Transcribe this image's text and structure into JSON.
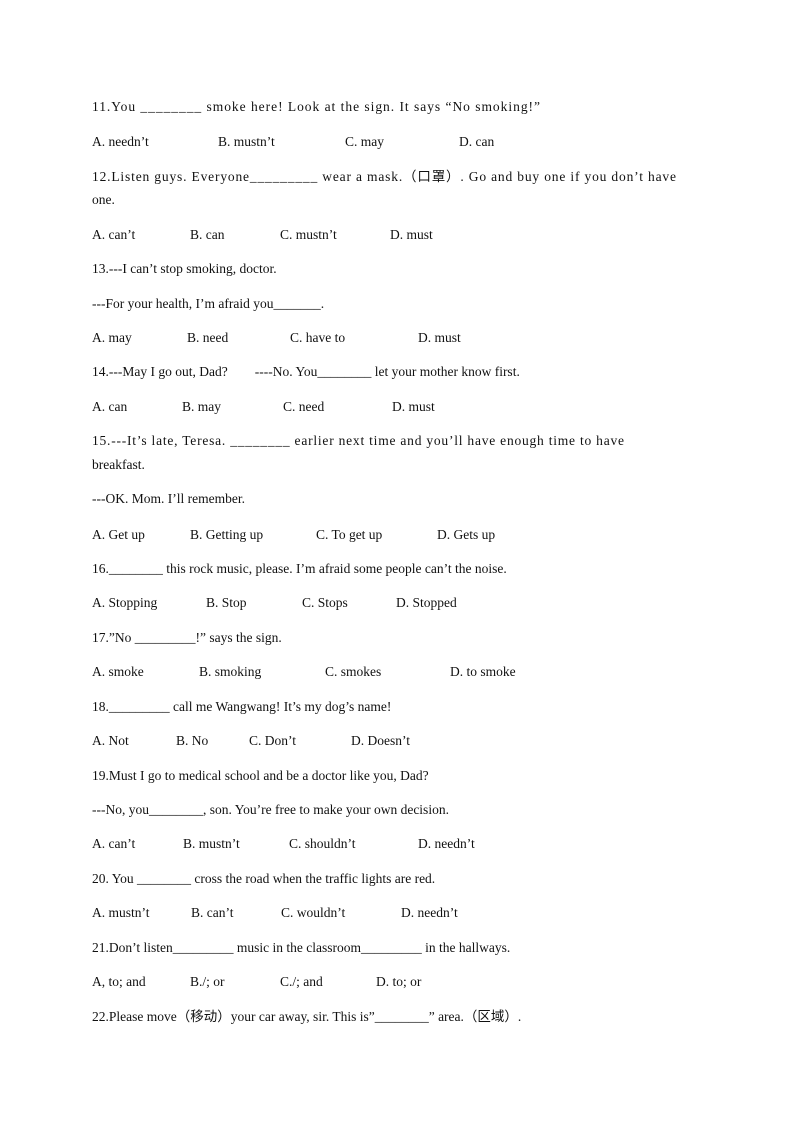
{
  "questions": [
    {
      "stem": [
        "11.You ________ smoke here! Look at the sign. It says “No smoking!”"
      ],
      "options": [
        {
          "text": "A. needn’t",
          "color": "#111111"
        },
        {
          "text": "B. mustn’t",
          "color": "#e8201f"
        },
        {
          "text": "C. may",
          "color": "#111111"
        },
        {
          "text": "D. can",
          "color": "#111111"
        }
      ]
    },
    {
      "stem": [
        "12.Listen guys. Everyone_________ wear a mask.（口罩）. Go and buy one if you don’t have",
        "one."
      ],
      "options": [
        {
          "text": "A. can’t",
          "color": "#111111"
        },
        {
          "text": "B. can",
          "color": "#111111"
        },
        {
          "text": "C. mustn’t",
          "color": "#111111"
        },
        {
          "text": "D. must",
          "color": "#e8201f"
        }
      ]
    },
    {
      "stem": [
        "13.---I can’t stop smoking, doctor.",
        "---For your health, I’m afraid you_______."
      ],
      "options": [
        {
          "text": "A. may",
          "color": "#111111"
        },
        {
          "text": "B. need",
          "color": "#111111"
        },
        {
          "text": "C. have to",
          "color": "#e8201f"
        },
        {
          "text": "D. must",
          "color": "#111111"
        }
      ]
    },
    {
      "stem": [
        "14.---May I go out, Dad?        ----No. You________ let your mother know first."
      ],
      "options": [
        {
          "text": "A. can",
          "color": "#111111"
        },
        {
          "text": "B. may",
          "color": "#111111"
        },
        {
          "text": "C. need",
          "color": "#111111"
        },
        {
          "text": "D. must",
          "color": "#e8201f"
        }
      ]
    },
    {
      "stem": [
        "15.---It’s late, Teresa. ________ earlier next time and you’ll have enough time to have",
        "breakfast.",
        "---OK. Mom. I’ll remember."
      ],
      "options": [
        {
          "text": "A. Get up",
          "color": "#e8201f"
        },
        {
          "text": "B. Getting up",
          "color": "#111111"
        },
        {
          "text": "C. To get up",
          "color": "#111111"
        },
        {
          "text": "D. Gets up",
          "color": "#111111"
        }
      ]
    },
    {
      "stem": [
        "16.________ this rock music, please. I’m afraid some people can’t the noise."
      ],
      "options": [
        {
          "text": "A. Stopping",
          "color": "#111111"
        },
        {
          "text": "B. Stop",
          "color": "#e8201f"
        },
        {
          "text": "C. Stops",
          "color": "#111111"
        },
        {
          "text": "D. Stopped",
          "color": "#111111"
        }
      ]
    },
    {
      "stem": [
        "17.”No _________!” says the sign."
      ],
      "options": [
        {
          "text": "A. smoke",
          "color": "#111111"
        },
        {
          "text": "B. smoking",
          "color": "#e8201f"
        },
        {
          "text": "C. smokes",
          "color": "#111111"
        },
        {
          "text": "D. to smoke",
          "color": "#111111"
        }
      ]
    },
    {
      "stem": [
        "18._________ call me Wangwang! It’s my dog’s name!"
      ],
      "options": [
        {
          "text": "A. Not",
          "color": "#111111"
        },
        {
          "text": "B. No",
          "color": "#111111"
        },
        {
          "text": "C. Don’t",
          "color": "#e8201f"
        },
        {
          "text": "D. Doesn’t",
          "color": "#111111"
        }
      ]
    },
    {
      "stem": [
        "19.Must I go to medical school and be a doctor like you, Dad?",
        "---No, you________, son. You’re free to make your own decision."
      ],
      "options": [
        {
          "text": "A. can’t",
          "color": "#111111"
        },
        {
          "text": "B. mustn’t",
          "color": "#111111"
        },
        {
          "text": "C. shouldn’t",
          "color": "#111111"
        },
        {
          "text": "D. needn’t",
          "color": "#e8201f"
        }
      ]
    },
    {
      "stem": [
        "20. You ________ cross the road when the traffic lights are red."
      ],
      "options": [
        {
          "text": "A. mustn’t",
          "color": "#e8201f"
        },
        {
          "text": "B. can’t",
          "color": "#111111"
        },
        {
          "text": "C. wouldn’t",
          "color": "#111111"
        },
        {
          "text": "D. needn’t",
          "color": "#111111"
        }
      ]
    },
    {
      "stem": [
        "21.Don’t listen_________ music in the classroom_________ in the hallways."
      ],
      "options": [
        {
          "text": "A, to; and",
          "color": "#111111"
        },
        {
          "text": "B./; or",
          "color": "#111111"
        },
        {
          "text": "C./; and",
          "color": "#111111"
        },
        {
          "text": "D. to; or",
          "color": "#e8201f"
        }
      ]
    },
    {
      "stem": [
        "22.Please move（移动）your car away, sir. This is”________” area.（区域）."
      ]
    }
  ]
}
